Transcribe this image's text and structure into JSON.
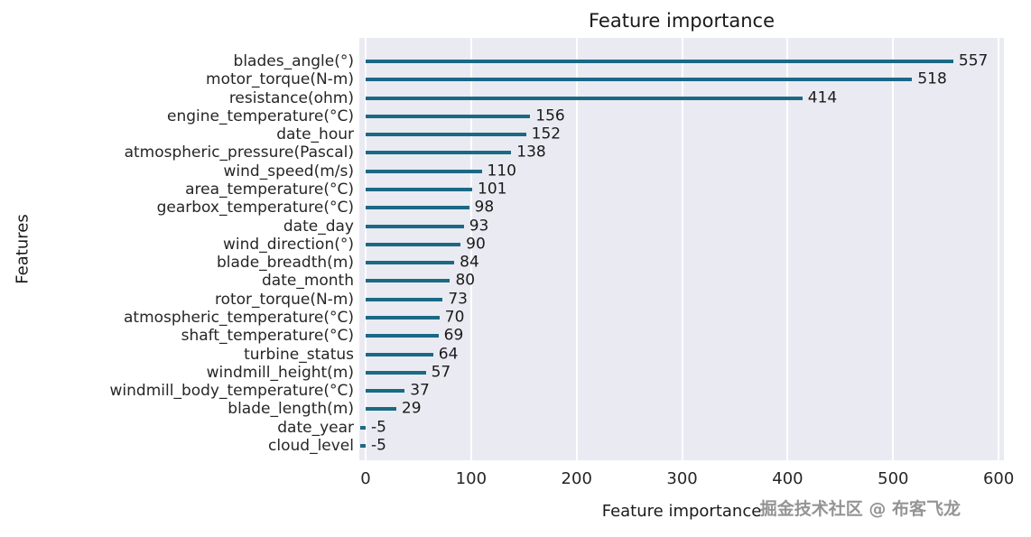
{
  "watermark": "掘金技术社区 @ 布客飞龙",
  "chart_data": {
    "type": "bar",
    "orientation": "horizontal",
    "title": "Feature importance",
    "xlabel": "Feature importance",
    "ylabel": "Features",
    "categories": [
      "blades_angle(°)",
      "motor_torque(N-m)",
      "resistance(ohm)",
      "engine_temperature(°C)",
      "date_hour",
      "atmospheric_pressure(Pascal)",
      "wind_speed(m/s)",
      "area_temperature(°C)",
      "gearbox_temperature(°C)",
      "date_day",
      "wind_direction(°)",
      "blade_breadth(m)",
      "date_month",
      "rotor_torque(N-m)",
      "atmospheric_temperature(°C)",
      "shaft_temperature(°C)",
      "turbine_status",
      "windmill_height(m)",
      "windmill_body_temperature(°C)",
      "blade_length(m)",
      "date_year",
      "cloud_level"
    ],
    "values": [
      557,
      518,
      414,
      156,
      152,
      138,
      110,
      101,
      98,
      93,
      90,
      84,
      80,
      73,
      70,
      69,
      64,
      57,
      37,
      29,
      -5,
      -5
    ],
    "xticks": [
      0,
      100,
      200,
      300,
      400,
      500,
      600
    ],
    "xlim": [
      -6,
      605
    ],
    "grid": true,
    "legend": "none",
    "bar_color": "#1a6985",
    "plot_bg": "#eaeaf2",
    "grid_color": "#ffffff"
  }
}
